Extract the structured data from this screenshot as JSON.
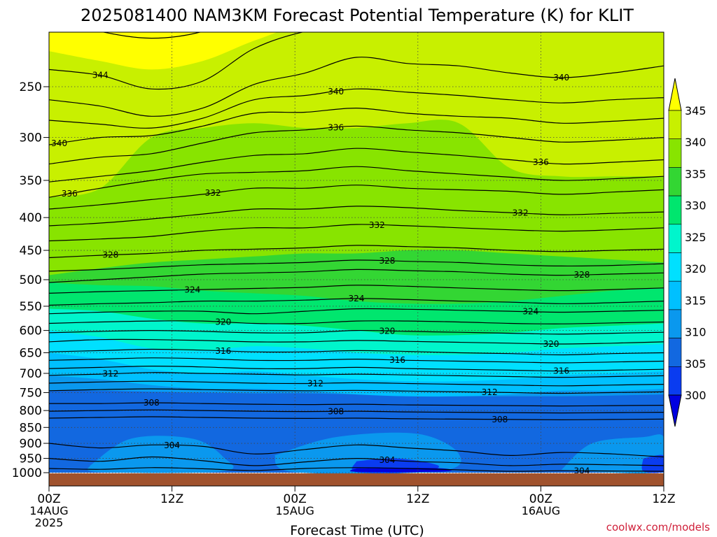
{
  "chart_data": {
    "type": "heatmap",
    "title": "2025081400 NAM3KM Forecast Potential Temperature (K) for KLIT",
    "xlabel": "Forecast Time (UTC)",
    "ylabel": "",
    "credit": "coolwx.com/models",
    "x_ticks": [
      {
        "label": "00Z",
        "date": "14AUG",
        "year": "2025"
      },
      {
        "label": "12Z",
        "date": "",
        "year": ""
      },
      {
        "label": "00Z",
        "date": "15AUG",
        "year": ""
      },
      {
        "label": "12Z",
        "date": "",
        "year": ""
      },
      {
        "label": "00Z",
        "date": "16AUG",
        "year": ""
      },
      {
        "label": "12Z",
        "date": "",
        "year": ""
      }
    ],
    "x_hours": [
      0,
      12,
      24,
      36,
      48,
      60
    ],
    "xlim": [
      0,
      60
    ],
    "y_ticks": [
      250,
      300,
      350,
      400,
      450,
      500,
      550,
      600,
      650,
      700,
      750,
      800,
      850,
      900,
      950,
      1000
    ],
    "ylim_hpa": [
      1000,
      200
    ],
    "y_scale": "log-pressure",
    "grid": true,
    "colorbar": {
      "levels": [
        345,
        340,
        335,
        330,
        325,
        320,
        315,
        310,
        305,
        300
      ],
      "colors": [
        "#ffff00",
        "#c8f000",
        "#88e400",
        "#33d633",
        "#00e66e",
        "#00f5cc",
        "#00e0ff",
        "#00c0ff",
        "#0a98ee",
        "#1268e0",
        "#0a3cf0",
        "#0000e0"
      ]
    },
    "fill_bands": [
      {
        "color": "#ffff00",
        "bottom_hpa": [
          220,
          228,
          235,
          228,
          212,
          200,
          200,
          200,
          200,
          200,
          200,
          200,
          200
        ]
      },
      {
        "color": "#c8f000",
        "bottom_hpa": [
          372,
          360,
          300,
          290,
          285,
          290,
          290,
          285,
          285,
          335,
          345,
          345,
          345
        ]
      },
      {
        "color": "#88e400",
        "bottom_hpa": [
          492,
          480,
          470,
          465,
          460,
          455,
          455,
          450,
          450,
          455,
          460,
          465,
          470
        ]
      },
      {
        "color": "#33d633",
        "bottom_hpa": [
          505,
          510,
          512,
          520,
          525,
          530,
          540,
          545,
          545,
          540,
          530,
          520,
          515
        ]
      },
      {
        "color": "#00e66e",
        "bottom_hpa": [
          555,
          560,
          575,
          585,
          585,
          590,
          600,
          610,
          610,
          605,
          595,
          590,
          585
        ]
      },
      {
        "color": "#00f5cc",
        "bottom_hpa": [
          600,
          615,
          640,
          645,
          635,
          640,
          650,
          655,
          655,
          650,
          640,
          635,
          630
        ]
      },
      {
        "color": "#00e0ff",
        "bottom_hpa": [
          650,
          665,
          690,
          700,
          695,
          705,
          715,
          720,
          720,
          715,
          705,
          700,
          695
        ]
      },
      {
        "color": "#00c0ff",
        "bottom_hpa": [
          705,
          715,
          730,
          740,
          740,
          745,
          755,
          760,
          760,
          755,
          745,
          745,
          740
        ]
      },
      {
        "color": "#0a98ee",
        "bottom_hpa": [
          745,
          745,
          748,
          750,
          752,
          752,
          755,
          758,
          760,
          760,
          760,
          758,
          755
        ]
      },
      {
        "color": "#1268e0",
        "bottom_hpa": [
          1000,
          1000,
          1000,
          1000,
          1000,
          1000,
          1000,
          1000,
          1000,
          1000,
          1000,
          1000,
          1000
        ]
      }
    ],
    "patches": [
      {
        "color": "#0a98ee",
        "points": [
          [
            4,
            975
          ],
          [
            8,
            885
          ],
          [
            14,
            885
          ],
          [
            17,
            945
          ],
          [
            17,
            995
          ],
          [
            5,
            998
          ]
        ]
      },
      {
        "color": "#0a98ee",
        "points": [
          [
            22,
            940
          ],
          [
            28,
            880
          ],
          [
            36,
            870
          ],
          [
            40,
            935
          ],
          [
            38,
            995
          ],
          [
            24,
            998
          ]
        ]
      },
      {
        "color": "#0a98ee",
        "points": [
          [
            50,
            990
          ],
          [
            53,
            900
          ],
          [
            58,
            880
          ],
          [
            60,
            880
          ],
          [
            60,
            995
          ]
        ]
      },
      {
        "color": "#0a3cf0",
        "points": [
          [
            30,
            960
          ],
          [
            34,
            950
          ],
          [
            38,
            975
          ],
          [
            36,
            998
          ],
          [
            30,
            998
          ]
        ]
      },
      {
        "color": "#0a3cf0",
        "points": [
          [
            58,
            950
          ],
          [
            60,
            940
          ],
          [
            60,
            995
          ],
          [
            58,
            995
          ]
        ]
      },
      {
        "color": "#0000e0",
        "points": [
          [
            30,
            985
          ],
          [
            38,
            984
          ],
          [
            38.5,
            996
          ],
          [
            30,
            997
          ]
        ]
      }
    ],
    "contours": [
      {
        "value": 344,
        "hpa": [
          195,
          205,
          210,
          205,
          190,
          185,
          180,
          175,
          175,
          175,
          170,
          170,
          170
        ],
        "label_hour": 41
      },
      {
        "value": 344,
        "hpa": [
          235,
          240,
          252,
          245,
          218,
          205,
          200,
          195,
          190,
          190,
          195,
          195,
          190
        ],
        "label_hour": 5
      },
      {
        "value": 340,
        "hpa": [
          262,
          268,
          278,
          270,
          248,
          238,
          225,
          230,
          232,
          238,
          242,
          238,
          232
        ],
        "label_hour": 50
      },
      {
        "value": 340,
        "hpa": [
          282,
          286,
          290,
          280,
          262,
          258,
          252,
          255,
          258,
          262,
          265,
          262,
          260
        ],
        "label_hour": 28
      },
      {
        "value": 340,
        "hpa": [
          308,
          300,
          298,
          288,
          275,
          274,
          270,
          275,
          278,
          280,
          285,
          283,
          280
        ],
        "label_hour": 1
      },
      {
        "value": 336,
        "hpa": [
          330,
          322,
          318,
          306,
          295,
          292,
          288,
          292,
          295,
          300,
          305,
          303,
          300
        ],
        "label_hour": 28
      },
      {
        "value": 336,
        "hpa": [
          352,
          345,
          338,
          328,
          320,
          318,
          312,
          316,
          320,
          325,
          330,
          328,
          325
        ],
        "label_hour": 48
      },
      {
        "value": 336,
        "hpa": [
          372,
          360,
          350,
          342,
          340,
          338,
          333,
          338,
          342,
          346,
          350,
          348,
          345
        ],
        "label_hour": 2
      },
      {
        "value": 332,
        "hpa": [
          388,
          382,
          375,
          368,
          360,
          360,
          356,
          360,
          362,
          364,
          368,
          365,
          362
        ],
        "label_hour": 16
      },
      {
        "value": 332,
        "hpa": [
          412,
          408,
          402,
          395,
          388,
          388,
          384,
          386,
          390,
          393,
          396,
          394,
          392
        ],
        "label_hour": 46
      },
      {
        "value": 332,
        "hpa": [
          435,
          432,
          428,
          420,
          415,
          415,
          410,
          412,
          415,
          418,
          420,
          418,
          415
        ],
        "label_hour": 32
      },
      {
        "value": 328,
        "hpa": [
          462,
          458,
          455,
          450,
          448,
          446,
          442,
          444,
          446,
          450,
          452,
          450,
          448
        ],
        "label_hour": 6
      },
      {
        "value": 328,
        "hpa": [
          485,
          482,
          478,
          474,
          472,
          470,
          466,
          468,
          470,
          474,
          476,
          475,
          472
        ],
        "label_hour": 33
      },
      {
        "value": 328,
        "hpa": [
          505,
          500,
          495,
          490,
          488,
          486,
          482,
          484,
          486,
          490,
          492,
          490,
          488
        ],
        "label_hour": 52
      },
      {
        "value": 324,
        "hpa": [
          525,
          522,
          520,
          518,
          516,
          514,
          510,
          512,
          515,
          518,
          520,
          518,
          515
        ],
        "label_hour": 14
      },
      {
        "value": 324,
        "hpa": [
          548,
          545,
          543,
          540,
          540,
          538,
          535,
          537,
          540,
          542,
          545,
          543,
          540
        ],
        "label_hour": 30
      },
      {
        "value": 324,
        "hpa": [
          565,
          562,
          560,
          560,
          565,
          560,
          555,
          556,
          558,
          560,
          562,
          560,
          558
        ],
        "label_hour": 47
      },
      {
        "value": 320,
        "hpa": [
          585,
          582,
          580,
          580,
          585,
          585,
          580,
          580,
          582,
          585,
          586,
          584,
          582
        ],
        "label_hour": 17
      },
      {
        "value": 320,
        "hpa": [
          605,
          602,
          600,
          602,
          605,
          605,
          600,
          602,
          604,
          606,
          608,
          606,
          604
        ],
        "label_hour": 33
      },
      {
        "value": 320,
        "hpa": [
          625,
          620,
          620,
          622,
          625,
          625,
          622,
          624,
          626,
          628,
          630,
          628,
          625
        ],
        "label_hour": 49
      },
      {
        "value": 316,
        "hpa": [
          648,
          645,
          642,
          644,
          648,
          648,
          645,
          647,
          650,
          652,
          655,
          652,
          650
        ],
        "label_hour": 17
      },
      {
        "value": 316,
        "hpa": [
          668,
          665,
          662,
          664,
          668,
          668,
          665,
          668,
          670,
          672,
          674,
          672,
          670
        ],
        "label_hour": 34
      },
      {
        "value": 316,
        "hpa": [
          688,
          685,
          682,
          684,
          688,
          688,
          685,
          688,
          690,
          692,
          694,
          692,
          690
        ],
        "label_hour": 50
      },
      {
        "value": 312,
        "hpa": [
          705,
          702,
          698,
          700,
          702,
          704,
          702,
          704,
          706,
          708,
          710,
          708,
          706
        ],
        "label_hour": 6
      },
      {
        "value": 312,
        "hpa": [
          725,
          722,
          720,
          722,
          725,
          726,
          724,
          726,
          728,
          730,
          732,
          730,
          728
        ],
        "label_hour": 26
      },
      {
        "value": 312,
        "hpa": [
          745,
          742,
          740,
          742,
          744,
          745,
          744,
          746,
          748,
          750,
          752,
          750,
          748
        ],
        "label_hour": 43
      },
      {
        "value": 308,
        "hpa": [
          780,
          780,
          778,
          780,
          782,
          783,
          782,
          784,
          785,
          786,
          787,
          786,
          785
        ],
        "label_hour": 10
      },
      {
        "value": 308,
        "hpa": [
          802,
          800,
          798,
          800,
          802,
          803,
          802,
          804,
          805,
          806,
          807,
          806,
          805
        ],
        "label_hour": 28
      },
      {
        "value": 308,
        "hpa": [
          822,
          820,
          818,
          820,
          822,
          823,
          822,
          824,
          825,
          826,
          827,
          826,
          825
        ],
        "label_hour": 44
      },
      {
        "value": 304,
        "hpa": [
          900,
          915,
          905,
          910,
          935,
          920,
          905,
          915,
          925,
          940,
          930,
          935,
          945
        ],
        "label_hour": 12
      },
      {
        "value": 304,
        "hpa": [
          950,
          960,
          945,
          958,
          975,
          962,
          950,
          960,
          965,
          975,
          970,
          972,
          975
        ],
        "label_hour": 33
      },
      {
        "value": 304,
        "hpa": [
          985,
          988,
          982,
          986,
          992,
          985,
          982,
          985,
          990,
          995,
          993,
          994,
          995
        ],
        "label_hour": 52
      }
    ]
  }
}
